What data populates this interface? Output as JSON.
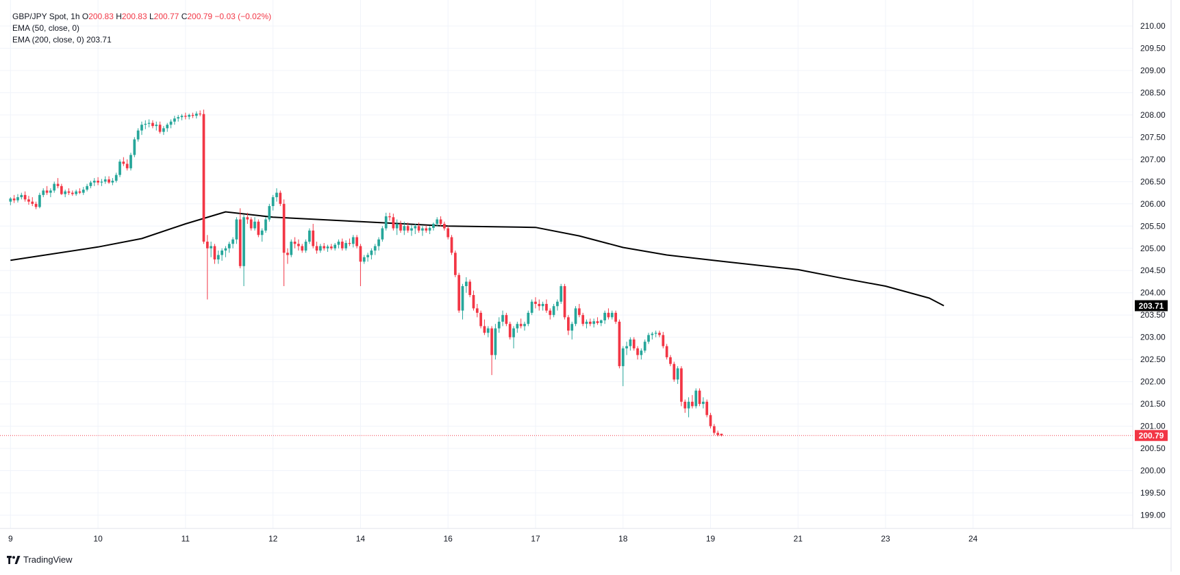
{
  "legend": {
    "symbol": "GBP/JPY Spot, 1h",
    "o_label": "O",
    "o": "200.83",
    "h_label": "H",
    "h": "200.83",
    "l_label": "L",
    "l": "200.77",
    "c_label": "C",
    "c": "200.79",
    "change": "−0.03 (−0.02%)",
    "ema50": "EMA (50, close, 0)",
    "ema200": "EMA (200, close, 0)",
    "ema200_value": "203.71"
  },
  "brand": {
    "name": "TradingView"
  },
  "colors": {
    "up": "#26a69a",
    "down": "#f23645",
    "ema": "#000000",
    "grid": "#f0f3fa",
    "axis_text": "#131722",
    "price_line": "#f23645"
  },
  "chart_data": {
    "type": "candlestick",
    "title": "",
    "ylim": [
      198.7,
      210.4
    ],
    "yticks": [
      199.0,
      199.5,
      200.0,
      200.5,
      201.0,
      201.5,
      202.0,
      202.5,
      203.0,
      203.5,
      204.0,
      204.5,
      205.0,
      205.5,
      206.0,
      206.5,
      207.0,
      207.5,
      208.0,
      208.5,
      209.0,
      209.5,
      210.0
    ],
    "ytick_labels": [
      "199.00",
      "199.50",
      "200.00",
      "200.50",
      "201.00",
      "201.50",
      "202.00",
      "202.50",
      "203.00",
      "203.50",
      "204.00",
      "204.50",
      "205.00",
      "205.50",
      "206.00",
      "206.50",
      "207.00",
      "207.50",
      "208.00",
      "208.50",
      "209.00",
      "209.50",
      "210.00"
    ],
    "xlabels": [
      {
        "label": "9",
        "bar": 0
      },
      {
        "label": "10",
        "bar": 24
      },
      {
        "label": "11",
        "bar": 48
      },
      {
        "label": "12",
        "bar": 72
      },
      {
        "label": "14",
        "bar": 96
      },
      {
        "label": "16",
        "bar": 120
      },
      {
        "label": "17",
        "bar": 144
      },
      {
        "label": "18",
        "bar": 168
      },
      {
        "label": "19",
        "bar": 192
      },
      {
        "label": "21",
        "bar": 216
      },
      {
        "label": "23",
        "bar": 240
      },
      {
        "label": "24",
        "bar": 264
      }
    ],
    "bar_range": [
      -1,
      280
    ],
    "last_price": 200.79,
    "last_price_label": "200.79",
    "ema200_label": "203.71",
    "ema200": [
      {
        "bar": 0,
        "v": 204.73
      },
      {
        "bar": 24,
        "v": 205.03
      },
      {
        "bar": 36,
        "v": 205.22
      },
      {
        "bar": 48,
        "v": 205.55
      },
      {
        "bar": 59,
        "v": 205.82
      },
      {
        "bar": 72,
        "v": 205.7
      },
      {
        "bar": 96,
        "v": 205.6
      },
      {
        "bar": 120,
        "v": 205.5
      },
      {
        "bar": 144,
        "v": 205.47
      },
      {
        "bar": 156,
        "v": 205.28
      },
      {
        "bar": 168,
        "v": 205.02
      },
      {
        "bar": 180,
        "v": 204.85
      },
      {
        "bar": 196,
        "v": 204.7
      },
      {
        "bar": 216,
        "v": 204.52
      },
      {
        "bar": 228,
        "v": 204.33
      },
      {
        "bar": 240,
        "v": 204.15
      },
      {
        "bar": 252,
        "v": 203.88
      },
      {
        "bar": 256,
        "v": 203.71
      }
    ],
    "candles": [
      [
        206.05,
        206.15,
        205.97,
        206.12
      ],
      [
        206.12,
        206.2,
        206.02,
        206.08
      ],
      [
        206.08,
        206.22,
        206.03,
        206.15
      ],
      [
        206.15,
        206.25,
        206.1,
        206.2
      ],
      [
        206.2,
        206.28,
        206.05,
        206.1
      ],
      [
        206.1,
        206.18,
        205.98,
        206.05
      ],
      [
        206.05,
        206.15,
        205.95,
        206.0
      ],
      [
        206.0,
        206.05,
        205.88,
        205.93
      ],
      [
        205.93,
        206.25,
        205.9,
        206.2
      ],
      [
        206.2,
        206.35,
        206.15,
        206.3
      ],
      [
        206.3,
        206.4,
        206.2,
        206.25
      ],
      [
        206.25,
        206.35,
        206.15,
        206.3
      ],
      [
        206.3,
        206.5,
        206.25,
        206.45
      ],
      [
        206.45,
        206.58,
        206.35,
        206.4
      ],
      [
        206.4,
        206.45,
        206.2,
        206.22
      ],
      [
        206.22,
        206.32,
        206.15,
        206.28
      ],
      [
        206.28,
        206.35,
        206.2,
        206.25
      ],
      [
        206.25,
        206.3,
        206.18,
        206.22
      ],
      [
        206.22,
        206.32,
        206.18,
        206.28
      ],
      [
        206.28,
        206.35,
        206.22,
        206.25
      ],
      [
        206.25,
        206.38,
        206.2,
        206.32
      ],
      [
        206.32,
        206.45,
        206.28,
        206.4
      ],
      [
        206.4,
        206.52,
        206.35,
        206.48
      ],
      [
        206.48,
        206.58,
        206.4,
        206.52
      ],
      [
        206.52,
        206.6,
        206.42,
        206.48
      ],
      [
        206.48,
        206.56,
        206.4,
        206.5
      ],
      [
        206.5,
        206.62,
        206.45,
        206.55
      ],
      [
        206.55,
        206.62,
        206.45,
        206.48
      ],
      [
        206.48,
        206.58,
        206.42,
        206.52
      ],
      [
        206.52,
        206.7,
        206.48,
        206.65
      ],
      [
        206.65,
        207.0,
        206.6,
        206.95
      ],
      [
        206.95,
        207.05,
        206.85,
        206.9
      ],
      [
        206.9,
        207.0,
        206.75,
        206.8
      ],
      [
        206.8,
        207.15,
        206.75,
        207.1
      ],
      [
        207.1,
        207.5,
        207.05,
        207.45
      ],
      [
        207.45,
        207.7,
        207.4,
        207.65
      ],
      [
        207.65,
        207.85,
        207.55,
        207.78
      ],
      [
        207.78,
        207.88,
        207.68,
        207.8
      ],
      [
        207.8,
        207.9,
        207.72,
        207.82
      ],
      [
        207.82,
        207.88,
        207.7,
        207.75
      ],
      [
        207.75,
        207.85,
        207.65,
        207.78
      ],
      [
        207.78,
        207.85,
        207.58,
        207.62
      ],
      [
        207.62,
        207.75,
        207.55,
        207.7
      ],
      [
        207.7,
        207.82,
        207.62,
        207.78
      ],
      [
        207.78,
        207.9,
        207.7,
        207.85
      ],
      [
        207.85,
        207.98,
        207.78,
        207.92
      ],
      [
        207.92,
        208.0,
        207.85,
        207.95
      ],
      [
        207.95,
        208.02,
        207.88,
        207.98
      ],
      [
        207.98,
        208.05,
        207.9,
        207.96
      ],
      [
        207.96,
        208.03,
        207.9,
        208.0
      ],
      [
        208.0,
        208.05,
        207.93,
        207.98
      ],
      [
        207.98,
        208.08,
        207.92,
        208.03
      ],
      [
        208.03,
        208.1,
        207.97,
        208.02
      ],
      [
        208.02,
        208.12,
        205.1,
        205.15
      ],
      [
        205.15,
        205.3,
        203.85,
        205.0
      ],
      [
        205.0,
        205.15,
        204.8,
        205.05
      ],
      [
        205.05,
        205.1,
        204.65,
        204.75
      ],
      [
        204.75,
        204.95,
        204.65,
        204.85
      ],
      [
        204.85,
        205.0,
        204.72,
        204.95
      ],
      [
        204.95,
        205.05,
        204.8,
        205.0
      ],
      [
        205.0,
        205.15,
        204.9,
        205.1
      ],
      [
        205.1,
        205.25,
        205.0,
        205.2
      ],
      [
        205.2,
        205.7,
        205.1,
        205.65
      ],
      [
        205.65,
        205.9,
        204.55,
        204.6
      ],
      [
        204.6,
        205.75,
        204.15,
        205.7
      ],
      [
        205.7,
        205.8,
        205.55,
        205.65
      ],
      [
        205.65,
        205.7,
        205.4,
        205.45
      ],
      [
        205.45,
        205.7,
        205.4,
        205.6
      ],
      [
        205.6,
        205.65,
        205.25,
        205.3
      ],
      [
        205.3,
        205.45,
        205.15,
        205.4
      ],
      [
        205.4,
        205.7,
        205.35,
        205.65
      ],
      [
        205.65,
        206.0,
        205.6,
        205.95
      ],
      [
        205.95,
        206.2,
        205.85,
        206.15
      ],
      [
        206.15,
        206.35,
        206.05,
        206.25
      ],
      [
        206.25,
        206.3,
        205.95,
        206.0
      ],
      [
        206.0,
        206.1,
        204.15,
        204.9
      ],
      [
        204.9,
        205.0,
        204.65,
        204.85
      ],
      [
        204.85,
        205.2,
        204.8,
        205.15
      ],
      [
        205.15,
        205.25,
        205.0,
        205.1
      ],
      [
        205.1,
        205.2,
        204.95,
        205.05
      ],
      [
        205.05,
        205.1,
        204.9,
        204.95
      ],
      [
        204.95,
        205.2,
        204.9,
        205.15
      ],
      [
        205.15,
        205.45,
        205.1,
        205.4
      ],
      [
        205.4,
        205.55,
        205.0,
        205.05
      ],
      [
        205.05,
        205.15,
        204.88,
        204.95
      ],
      [
        204.95,
        205.1,
        204.9,
        205.05
      ],
      [
        205.05,
        205.12,
        204.95,
        205.0
      ],
      [
        205.0,
        205.08,
        204.92,
        205.04
      ],
      [
        205.04,
        205.1,
        204.96,
        205.0
      ],
      [
        205.0,
        205.12,
        204.95,
        205.08
      ],
      [
        205.08,
        205.2,
        205.0,
        205.15
      ],
      [
        205.15,
        205.22,
        204.95,
        205.0
      ],
      [
        205.0,
        205.18,
        204.95,
        205.12
      ],
      [
        205.12,
        205.22,
        205.05,
        205.1
      ],
      [
        205.1,
        205.3,
        205.02,
        205.25
      ],
      [
        205.25,
        205.3,
        205.0,
        205.05
      ],
      [
        205.05,
        205.1,
        204.15,
        204.7
      ],
      [
        204.7,
        204.85,
        204.65,
        204.8
      ],
      [
        204.8,
        204.9,
        204.7,
        204.85
      ],
      [
        204.85,
        205.0,
        204.75,
        204.95
      ],
      [
        204.95,
        205.1,
        204.85,
        205.05
      ],
      [
        205.05,
        205.25,
        204.95,
        205.2
      ],
      [
        205.2,
        205.5,
        205.15,
        205.45
      ],
      [
        205.45,
        205.8,
        205.4,
        205.72
      ],
      [
        205.72,
        205.8,
        205.62,
        205.7
      ],
      [
        205.7,
        205.78,
        205.4,
        205.45
      ],
      [
        205.45,
        205.65,
        205.3,
        205.55
      ],
      [
        205.55,
        205.62,
        205.35,
        205.4
      ],
      [
        205.4,
        205.6,
        205.3,
        205.5
      ],
      [
        205.5,
        205.58,
        205.35,
        205.4
      ],
      [
        205.4,
        205.52,
        205.28,
        205.45
      ],
      [
        205.45,
        205.55,
        205.32,
        205.5
      ],
      [
        205.5,
        205.58,
        205.35,
        205.4
      ],
      [
        205.4,
        205.5,
        205.28,
        205.45
      ],
      [
        205.45,
        205.52,
        205.35,
        205.4
      ],
      [
        205.4,
        205.5,
        205.32,
        205.46
      ],
      [
        205.46,
        205.58,
        205.4,
        205.55
      ],
      [
        205.55,
        205.7,
        205.5,
        205.65
      ],
      [
        205.65,
        205.72,
        205.5,
        205.55
      ],
      [
        205.55,
        205.6,
        205.4,
        205.45
      ],
      [
        205.45,
        205.5,
        205.2,
        205.25
      ],
      [
        205.25,
        205.3,
        204.85,
        204.9
      ],
      [
        204.9,
        204.95,
        204.35,
        204.4
      ],
      [
        204.4,
        204.45,
        203.55,
        203.6
      ],
      [
        203.6,
        204.2,
        203.4,
        204.15
      ],
      [
        204.15,
        204.35,
        204.0,
        204.25
      ],
      [
        204.25,
        204.3,
        203.9,
        203.95
      ],
      [
        203.95,
        204.05,
        203.6,
        203.65
      ],
      [
        203.65,
        203.75,
        203.45,
        203.55
      ],
      [
        203.55,
        203.6,
        203.2,
        203.25
      ],
      [
        203.25,
        203.4,
        203.05,
        203.1
      ],
      [
        203.1,
        203.25,
        203.0,
        203.2
      ],
      [
        203.2,
        203.25,
        202.15,
        202.6
      ],
      [
        202.6,
        203.3,
        202.5,
        203.2
      ],
      [
        203.2,
        203.45,
        203.1,
        203.35
      ],
      [
        203.35,
        203.6,
        203.25,
        203.5
      ],
      [
        203.5,
        203.55,
        203.25,
        203.3
      ],
      [
        203.3,
        203.35,
        202.95,
        203.0
      ],
      [
        203.0,
        203.25,
        202.75,
        203.2
      ],
      [
        203.2,
        203.35,
        203.1,
        203.3
      ],
      [
        203.3,
        203.42,
        203.2,
        203.25
      ],
      [
        203.25,
        203.35,
        203.15,
        203.3
      ],
      [
        203.3,
        203.6,
        203.25,
        203.55
      ],
      [
        203.55,
        203.85,
        203.5,
        203.8
      ],
      [
        203.8,
        203.9,
        203.65,
        203.75
      ],
      [
        203.75,
        203.85,
        203.6,
        203.7
      ],
      [
        203.7,
        203.8,
        203.6,
        203.75
      ],
      [
        203.75,
        203.85,
        203.55,
        203.6
      ],
      [
        203.6,
        203.65,
        203.4,
        203.5
      ],
      [
        203.5,
        203.75,
        203.45,
        203.7
      ],
      [
        203.7,
        203.85,
        203.6,
        203.8
      ],
      [
        203.8,
        204.2,
        203.75,
        204.15
      ],
      [
        204.15,
        204.2,
        203.4,
        203.45
      ],
      [
        203.45,
        203.5,
        203.05,
        203.15
      ],
      [
        203.15,
        203.35,
        202.95,
        203.3
      ],
      [
        203.3,
        203.7,
        203.25,
        203.65
      ],
      [
        203.65,
        203.75,
        203.45,
        203.5
      ],
      [
        203.5,
        203.55,
        203.25,
        203.3
      ],
      [
        203.3,
        203.4,
        203.2,
        203.35
      ],
      [
        203.35,
        203.42,
        203.25,
        203.3
      ],
      [
        203.3,
        203.42,
        203.22,
        203.36
      ],
      [
        203.36,
        203.45,
        203.28,
        203.32
      ],
      [
        203.32,
        203.4,
        203.25,
        203.38
      ],
      [
        203.38,
        203.6,
        203.3,
        203.55
      ],
      [
        203.55,
        203.65,
        203.4,
        203.45
      ],
      [
        203.45,
        203.6,
        203.4,
        203.55
      ],
      [
        203.55,
        203.6,
        203.3,
        203.35
      ],
      [
        203.35,
        203.4,
        202.3,
        202.35
      ],
      [
        202.35,
        202.8,
        201.9,
        202.75
      ],
      [
        202.75,
        202.9,
        202.6,
        202.8
      ],
      [
        202.8,
        203.0,
        202.7,
        202.95
      ],
      [
        202.95,
        203.0,
        202.7,
        202.75
      ],
      [
        202.75,
        202.8,
        202.5,
        202.6
      ],
      [
        202.6,
        202.75,
        202.5,
        202.7
      ],
      [
        202.7,
        202.95,
        202.65,
        202.9
      ],
      [
        202.9,
        203.1,
        202.85,
        203.05
      ],
      [
        203.05,
        203.12,
        202.95,
        203.08
      ],
      [
        203.08,
        203.15,
        203.0,
        203.1
      ],
      [
        203.1,
        203.15,
        203.0,
        203.05
      ],
      [
        203.05,
        203.12,
        202.75,
        202.8
      ],
      [
        202.8,
        202.85,
        202.5,
        202.55
      ],
      [
        202.55,
        202.6,
        202.35,
        202.4
      ],
      [
        202.4,
        202.45,
        202.0,
        202.05
      ],
      [
        202.05,
        202.35,
        201.95,
        202.3
      ],
      [
        202.3,
        202.35,
        201.45,
        201.55
      ],
      [
        201.55,
        201.6,
        201.3,
        201.4
      ],
      [
        201.4,
        201.65,
        201.2,
        201.55
      ],
      [
        201.55,
        201.7,
        201.4,
        201.45
      ],
      [
        201.45,
        201.85,
        201.4,
        201.8
      ],
      [
        201.8,
        201.85,
        201.45,
        201.5
      ],
      [
        201.5,
        201.65,
        201.4,
        201.55
      ],
      [
        201.55,
        201.6,
        201.2,
        201.25
      ],
      [
        201.25,
        201.3,
        200.95,
        201.0
      ],
      [
        201.0,
        201.05,
        200.8,
        200.85
      ],
      [
        200.85,
        200.9,
        200.77,
        200.8
      ],
      [
        200.83,
        200.83,
        200.77,
        200.79
      ]
    ],
    "candle_start_bar": 0
  }
}
